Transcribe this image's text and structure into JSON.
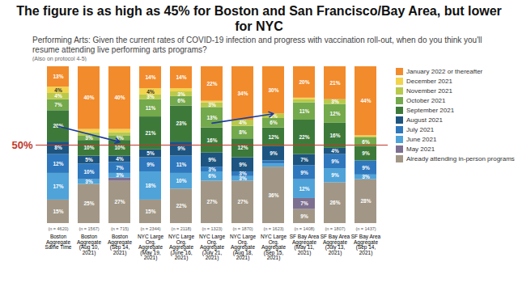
{
  "chart_data": {
    "type": "bar",
    "stacked": true,
    "title": "The figure is as high as 45% for Boston and San Francisco/Bay Area, but lower for NYC",
    "subtitle": "Performing Arts: Given the current rates of COVID-19 infection and progress with vaccination roll-out, when do you think you'll resume attending live performing arts programs?",
    "note": "(Also on protocol 4-5)",
    "categories": [
      "Boston Aggregate Same Time",
      "Boston Aggregate (Aug 10, 2021)",
      "Boston Aggregate (Sep 14, 2021)",
      "NYC Large Org. Aggregate (May 19, 2021)",
      "NYC Large Org. Aggregate (June 16, 2021)",
      "NYC Large Org. Aggregate (July 21, 2021)",
      "NYC Large Org. Aggregate (Aug 18, 2021)",
      "NYC Large Org. Aggregate (Sep 15, 2021)",
      "SF Bay Area Aggregate (May 11, 2021)",
      "SF Bay Area Aggregate (July 13, 2021)",
      "SF Bay Area Aggregate (Sep 14, 2021)"
    ],
    "sample_sizes": [
      "(n = 4620)",
      "(n = 1567)",
      "(n = 715)",
      "(n = 2344)",
      "(n = 2118)",
      "(n = 1323)",
      "(n = 1870)",
      "(n = 1623)",
      "(n = 1408)",
      "(n = 1807)",
      "(n = 1437)"
    ],
    "series": [
      {
        "name": "Already attending in-person programs",
        "color": "#a29786",
        "values": [
          15,
          25,
          27,
          15,
          22,
          27,
          27,
          36,
          9,
          26,
          28
        ],
        "value_labels": [
          "15%",
          "25%",
          "27%",
          "15%",
          "22%",
          "27%",
          "27%",
          "36%",
          "9%",
          "26%",
          "28%"
        ]
      },
      {
        "name": "May 2021",
        "color": "#7d6f90",
        "values": [
          0,
          0,
          2,
          0,
          0,
          0,
          0,
          0,
          7,
          0,
          0
        ],
        "value_labels": [
          null,
          null,
          null,
          null,
          null,
          null,
          null,
          null,
          "7%",
          null,
          null
        ]
      },
      {
        "name": "June 2021",
        "color": "#4fa3d8",
        "values": [
          17,
          3,
          3,
          18,
          10,
          6,
          3,
          2,
          12,
          9,
          3
        ],
        "value_labels": [
          "17%",
          "3%",
          "3%",
          "18%",
          "10%",
          "6%",
          "3%",
          null,
          "12%",
          "9%",
          "3%"
        ]
      },
      {
        "name": "July 2021",
        "color": "#2f78bd",
        "values": [
          12,
          10,
          7,
          9,
          11,
          3,
          3,
          2,
          9,
          9,
          9
        ],
        "value_labels": [
          "12%",
          "10%",
          "7%",
          "9%",
          "11%",
          "3%",
          "3%",
          null,
          "9%",
          "9%",
          "9%"
        ]
      },
      {
        "name": "August 2021",
        "color": "#1d5580",
        "values": [
          8,
          5,
          4,
          5,
          9,
          9,
          9,
          9,
          7,
          4,
          0
        ],
        "value_labels": [
          "8%",
          "5%",
          "4%",
          "5%",
          "9%",
          "9%",
          "9%",
          "9%",
          "7%",
          "4%",
          null
        ]
      },
      {
        "name": "September 2021",
        "color": "#3d7a3a",
        "values": [
          20,
          10,
          10,
          21,
          23,
          16,
          12,
          12,
          22,
          16,
          9
        ],
        "value_labels": [
          "20%",
          "10%",
          "10%",
          "21%",
          "23%",
          "16%",
          "12%",
          "12%",
          "22%",
          "16%",
          "9%"
        ]
      },
      {
        "name": "October 2021",
        "color": "#74a94c",
        "values": [
          7,
          3,
          3,
          11,
          6,
          13,
          8,
          6,
          11,
          12,
          6
        ],
        "value_labels": [
          "7%",
          "3%",
          "3%",
          "11%",
          "6%",
          "13%",
          "8%",
          "6%",
          "11%",
          "12%",
          "6%"
        ]
      },
      {
        "name": "November 2021",
        "color": "#b9c94b",
        "values": [
          4,
          2,
          2,
          3,
          3,
          3,
          4,
          3,
          2,
          3,
          0
        ],
        "value_labels": [
          "4%",
          null,
          null,
          "3%",
          "3%",
          "3%",
          "4%",
          "3%",
          null,
          "3%",
          null
        ]
      },
      {
        "name": "December 2021",
        "color": "#f2d34c",
        "values": [
          4,
          2,
          2,
          4,
          2,
          1,
          0,
          0,
          1,
          0,
          1
        ],
        "value_labels": [
          "4%",
          null,
          null,
          "4%",
          null,
          null,
          null,
          null,
          null,
          null,
          null
        ]
      },
      {
        "name": "January 2022 or thereafter",
        "color": "#f28b2c",
        "values": [
          13,
          40,
          40,
          14,
          14,
          22,
          34,
          30,
          20,
          21,
          44
        ],
        "value_labels": [
          "13%",
          "40%",
          "40%",
          "14%",
          "14%",
          "22%",
          "34%",
          "30%",
          "20%",
          "21%",
          "44%"
        ]
      }
    ],
    "ylim": [
      0,
      100
    ],
    "tick_labels": "x",
    "data_labels": true,
    "legend": "right",
    "annotations": [
      {
        "type": "line",
        "y": 50,
        "label": "50%",
        "color": "#c0392b"
      }
    ],
    "arrows": [
      {
        "x1": 0,
        "y1": 62,
        "x2": 2,
        "y2": 52,
        "color": "#1f3c9c"
      },
      {
        "x1": 5,
        "y1": 64,
        "x2": 7,
        "y2": 70,
        "color": "#1f3c9c"
      }
    ]
  }
}
